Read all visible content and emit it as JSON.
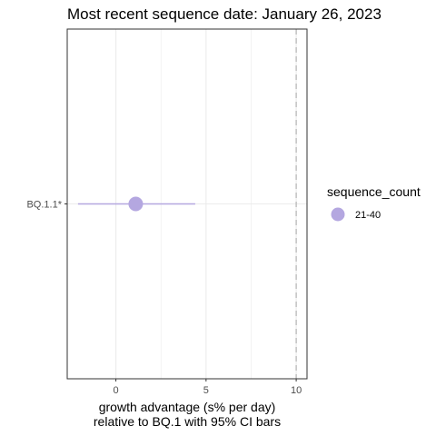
{
  "chart_data": {
    "type": "scatter",
    "title": "Most recent sequence date: January 26, 2023",
    "xlabel_line1": "growth advantage (s% per day)",
    "xlabel_line2": "relative to  BQ.1  with 95% CI bars",
    "ylabel": "",
    "xlim": [
      -2.7,
      10.6
    ],
    "x_ticks": [
      0,
      5,
      10
    ],
    "x_tick_labels": [
      "0",
      "5",
      "10"
    ],
    "reference_line_x": 10,
    "categories": [
      "BQ.1.1*"
    ],
    "points": [
      {
        "lineage": "BQ.1.1*",
        "x": 1.1,
        "ci_low": -2.1,
        "ci_high": 4.4,
        "sequence_count": "21-40"
      }
    ],
    "legend": {
      "title": "sequence_count",
      "entries": [
        {
          "label": "21-40"
        }
      ]
    },
    "colors": {
      "point": "#b4a7e0",
      "ci_bar": "#b4a7e0",
      "grid": "#ebebeb",
      "panel_border": "#333333",
      "reference_line": "#b3b3b3"
    }
  }
}
